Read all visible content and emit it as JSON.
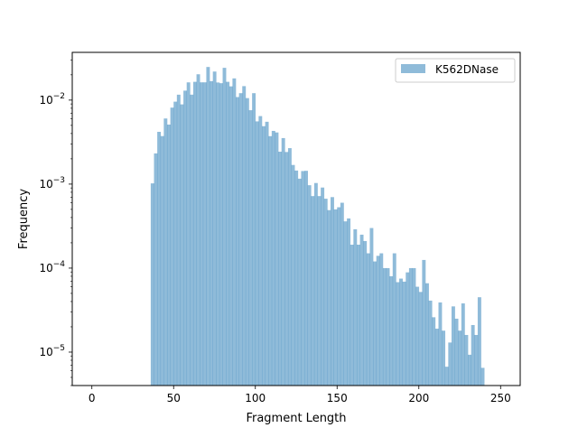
{
  "chart_data": {
    "type": "bar",
    "histogram": true,
    "title": "",
    "xlabel": "Fragment Length",
    "ylabel": "Frequency",
    "yscale": "log",
    "xlim": [
      -12,
      262
    ],
    "ylim": [
      4e-06,
      0.037
    ],
    "bin_width": 2,
    "grid": false,
    "legend_position": "top-right",
    "series": [
      {
        "name": "K562DNase",
        "color": "#1f77b4",
        "alpha": 0.5,
        "bin_start": [
          36,
          38,
          40,
          42,
          44,
          46,
          48,
          50,
          52,
          54,
          56,
          58,
          60,
          62,
          64,
          66,
          68,
          70,
          72,
          74,
          76,
          78,
          80,
          82,
          84,
          86,
          88,
          90,
          92,
          94,
          96,
          98,
          100,
          102,
          104,
          106,
          108,
          110,
          112,
          114,
          116,
          118,
          120,
          122,
          124,
          126,
          128,
          130,
          132,
          134,
          136,
          138,
          140,
          142,
          144,
          146,
          148,
          150,
          152,
          154,
          156,
          158,
          160,
          162,
          164,
          166,
          168,
          170,
          172,
          174,
          176,
          178,
          180,
          182,
          184,
          186,
          188,
          190,
          192,
          194,
          196,
          198,
          200,
          202,
          204,
          206,
          208,
          210,
          212,
          214,
          216,
          218,
          220,
          222,
          224,
          226,
          228,
          230,
          232,
          234,
          236,
          238
        ],
        "values": [
          0.00102,
          0.00232,
          0.00419,
          0.00373,
          0.00604,
          0.00511,
          0.00814,
          0.00958,
          0.0116,
          0.00889,
          0.01296,
          0.01626,
          0.01161,
          0.0165,
          0.0203,
          0.01627,
          0.01627,
          0.02479,
          0.01681,
          0.02187,
          0.0162,
          0.01589,
          0.02422,
          0.0165,
          0.01457,
          0.01813,
          0.01087,
          0.01209,
          0.01466,
          0.01056,
          0.00758,
          0.01209,
          0.00558,
          0.00645,
          0.00489,
          0.00552,
          0.00372,
          0.0043,
          0.00412,
          0.00243,
          0.00353,
          0.00241,
          0.00268,
          0.00169,
          0.00145,
          0.00116,
          0.00143,
          0.00144,
          0.00097,
          0.00072,
          0.00103,
          0.00072,
          0.00091,
          0.00067,
          0.00049,
          0.0007,
          0.0005,
          0.00053,
          0.0006,
          0.00036,
          0.00039,
          0.00019,
          0.00029,
          0.00019,
          0.00025,
          0.00021,
          0.00015,
          0.0003,
          0.00012,
          0.00014,
          0.00015,
          0.0001,
          0.0001,
          8e-05,
          0.00015,
          6.8e-05,
          7.5e-05,
          6.9e-05,
          8.9e-05,
          0.0001,
          0.0001,
          6e-05,
          5.2e-05,
          0.000125,
          6.6e-05,
          4.1e-05,
          2.6e-05,
          1.9e-05,
          3.9e-05,
          1.8e-05,
          6.7e-06,
          1.3e-05,
          3.5e-05,
          2.5e-05,
          1.8e-05,
          3.8e-05,
          1.6e-05,
          9.3e-06,
          2.1e-05,
          1.6e-05,
          4.5e-05,
          6.5e-06
        ]
      }
    ]
  }
}
